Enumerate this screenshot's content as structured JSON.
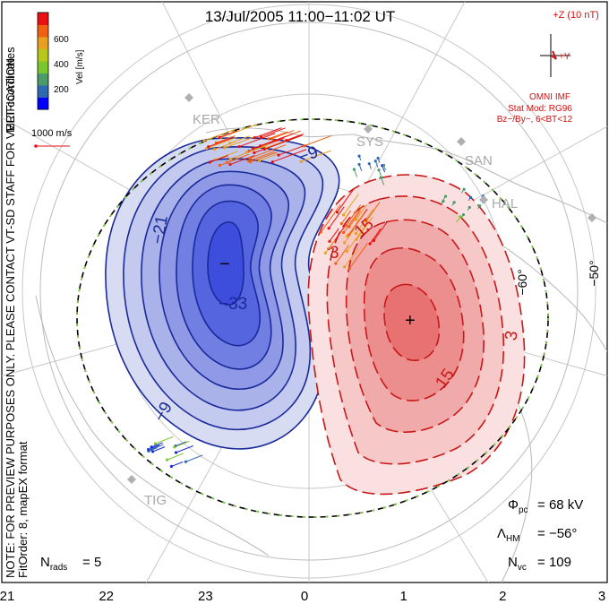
{
  "title": "13/Jul/2005 11:00−11:02 UT",
  "vertical_note_1": "NOTE: FOR PREVIEW PURPOSES ONLY. PLEASE CONTACT VT-SD STAFF FOR VERIFICATION.",
  "vertical_note_2": "FitOrder: 8, mapEX format",
  "mlt_label": "MLT coordinates",
  "colorbar": {
    "label": "Vel [m/s]",
    "ticks": [
      "600",
      "400",
      "200"
    ],
    "colors": [
      "#0000ff",
      "#2d6ab0",
      "#4a9a6a",
      "#7ac72b",
      "#b8c81a",
      "#e8a020",
      "#f06010",
      "#e81010"
    ]
  },
  "vector_scale_label": "1000 m/s",
  "imf": {
    "header": "+Z (10 nT)",
    "y_label": "+Y",
    "title": "OMNI IMF",
    "model_line1": "Stat Mod: RG96",
    "model_line2": "Bz−/By−, 6<BT<12"
  },
  "radars": [
    "KER",
    "SYS",
    "SAN",
    "HAL",
    "TIG"
  ],
  "lat_labels": [
    "−60°",
    "−50°"
  ],
  "contour_labels": [
    "−33",
    "−21",
    "−9",
    "−9",
    "3",
    "3",
    "15",
    "15"
  ],
  "stats": {
    "phi_pc": "68 kV",
    "lambda_hm": "−56°",
    "n_vc": "109",
    "n_rads": "5"
  },
  "chart_data": {
    "type": "polar-contour",
    "title": "13/Jul/2005 11:00-11:02 UT",
    "x_axis": "MLT",
    "x_ticks": [
      "21",
      "22",
      "23",
      "0",
      "1",
      "2",
      "3"
    ],
    "latitude_circles_deg": [
      -60,
      -50
    ],
    "potential_contours_kV": {
      "negative": [
        -33,
        -27,
        -21,
        -15,
        -9,
        -3
      ],
      "positive": [
        3,
        9,
        15,
        21
      ]
    },
    "potential_min_marker": "−",
    "potential_max_marker": "+",
    "cross_polar_cap_potential_kV": 68,
    "heppner_maynard_boundary_deg": -56,
    "n_vectors": 109,
    "n_radars": 5,
    "velocity_colorbar_ticks_m_s": [
      200,
      400,
      600
    ]
  },
  "colors": {
    "negative_fill": "#3030e0",
    "positive_fill": "#e02020",
    "negative_line": "#1a2a9a",
    "positive_line": "#c81818",
    "hmb_line": "#000000",
    "hmb_dash": "#7acc40",
    "annotation_red": "#d01010"
  }
}
